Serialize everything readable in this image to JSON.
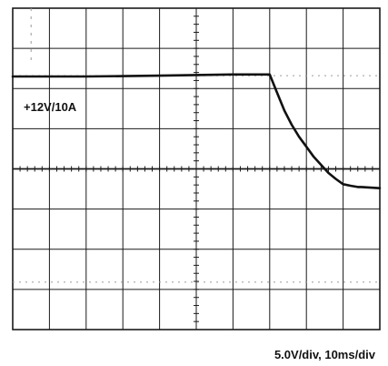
{
  "chart_data": {
    "type": "line",
    "divisions": {
      "horizontal": 10,
      "vertical": 8
    },
    "grid": true,
    "annotations": {
      "trace_label": "+12V/10A",
      "scale_label": "5.0V/div,  10ms/div"
    },
    "units": {
      "volts_per_div": 5.0,
      "ms_per_div": 10
    },
    "series": [
      {
        "x_ms": [
          0,
          20,
          40,
          60,
          70,
          72,
          74,
          76,
          78,
          80,
          82,
          84,
          86,
          88,
          90,
          92,
          94,
          95,
          100
        ],
        "y_div": [
          6.3,
          6.3,
          6.32,
          6.35,
          6.35,
          5.9,
          5.45,
          5.1,
          4.8,
          4.55,
          4.3,
          4.1,
          3.9,
          3.75,
          3.62,
          3.58,
          3.55,
          3.55,
          3.52
        ]
      }
    ],
    "colors": {
      "trace": "#111111",
      "grid": "#1a1a1a",
      "dotted_reference": "#9a9a9a"
    }
  }
}
